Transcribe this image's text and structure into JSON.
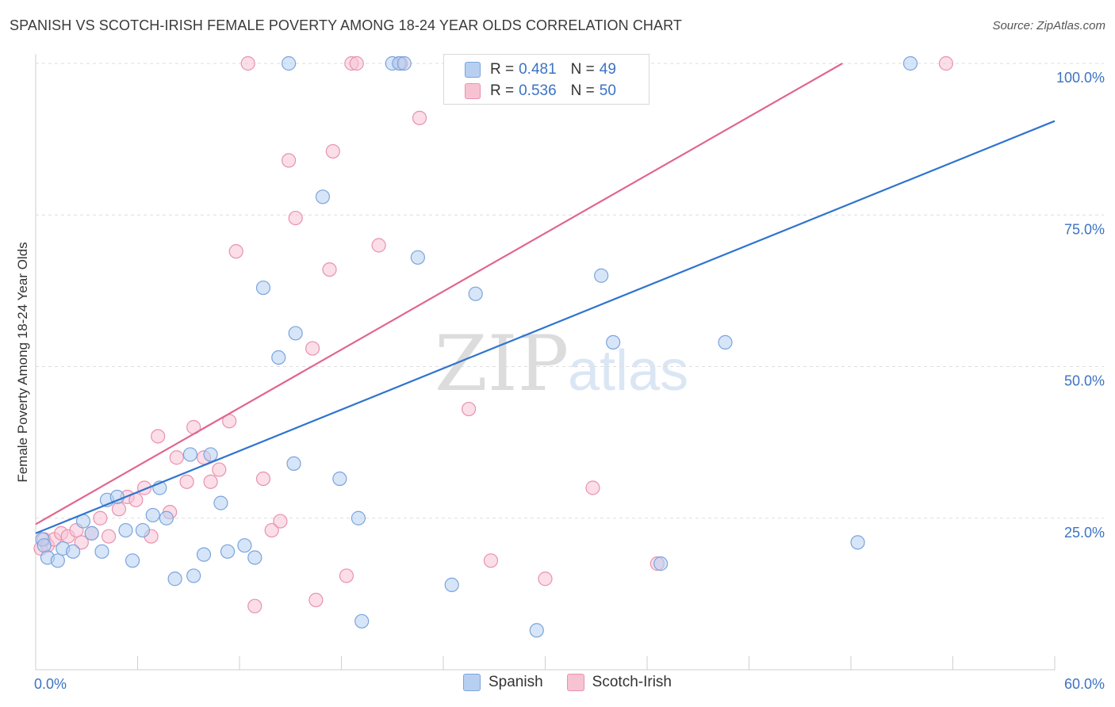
{
  "title": "SPANISH VS SCOTCH-IRISH FEMALE POVERTY AMONG 18-24 YEAR OLDS CORRELATION CHART",
  "source": "Source: ZipAtlas.com",
  "watermark": {
    "zip": "ZIP",
    "atlas": "atlas"
  },
  "colors": {
    "spanish_fill": "#b7d0f2",
    "spanish_stroke": "#7aa4dd",
    "spanish_line": "#2f74d0",
    "scotch_fill": "#f7c3d3",
    "scotch_stroke": "#e892ae",
    "scotch_line": "#e0668d",
    "axis_text": "#3b73c4"
  },
  "legend": {
    "r_label": "R =",
    "n_label": "N =",
    "spanish": {
      "r": "0.481",
      "n": "49"
    },
    "scotch": {
      "r": "0.536",
      "n": "50"
    }
  },
  "chart_data": {
    "type": "scatter",
    "xlabel": "",
    "ylabel": "Female Poverty Among 18-24 Year Olds",
    "xlim": [
      0,
      60
    ],
    "ylim": [
      0,
      100
    ],
    "x_ticks_labels": [
      "0.0%",
      "60.0%"
    ],
    "y_ticks": [
      25,
      50,
      75,
      100
    ],
    "y_ticks_labels": [
      "25.0%",
      "50.0%",
      "75.0%",
      "100.0%"
    ],
    "grid": "horizontal dashed",
    "series": [
      {
        "name": "Spanish",
        "trend": {
          "x": [
            0,
            60
          ],
          "y": [
            22.5,
            90.5
          ]
        },
        "points": [
          [
            0.4,
            21.5
          ],
          [
            0.5,
            20.5
          ],
          [
            0.7,
            18.5
          ],
          [
            1.3,
            18.0
          ],
          [
            1.6,
            20.0
          ],
          [
            2.2,
            19.5
          ],
          [
            2.8,
            24.5
          ],
          [
            3.3,
            22.5
          ],
          [
            3.9,
            19.5
          ],
          [
            4.2,
            28.0
          ],
          [
            4.8,
            28.5
          ],
          [
            5.3,
            23.0
          ],
          [
            5.7,
            18.0
          ],
          [
            6.3,
            23.0
          ],
          [
            6.9,
            25.5
          ],
          [
            7.3,
            30.0
          ],
          [
            7.7,
            25.0
          ],
          [
            8.2,
            15.0
          ],
          [
            9.1,
            35.5
          ],
          [
            9.3,
            15.5
          ],
          [
            9.9,
            19.0
          ],
          [
            10.3,
            35.5
          ],
          [
            10.9,
            27.5
          ],
          [
            11.3,
            19.5
          ],
          [
            12.3,
            20.5
          ],
          [
            12.9,
            18.5
          ],
          [
            13.4,
            63.0
          ],
          [
            14.3,
            51.5
          ],
          [
            14.9,
            100.0
          ],
          [
            15.3,
            55.5
          ],
          [
            15.2,
            34.0
          ],
          [
            16.9,
            78.0
          ],
          [
            17.9,
            31.5
          ],
          [
            19.0,
            25.0
          ],
          [
            19.2,
            8.0
          ],
          [
            21.0,
            100.0
          ],
          [
            21.4,
            100.0
          ],
          [
            21.7,
            100.0
          ],
          [
            22.5,
            68.0
          ],
          [
            24.5,
            14.0
          ],
          [
            25.9,
            62.0
          ],
          [
            28.6,
            100.0
          ],
          [
            29.5,
            6.5
          ],
          [
            33.3,
            65.0
          ],
          [
            34.0,
            54.0
          ],
          [
            36.8,
            17.5
          ],
          [
            40.6,
            54.0
          ],
          [
            48.4,
            21.0
          ],
          [
            51.5,
            100.0
          ]
        ]
      },
      {
        "name": "Scotch-Irish",
        "trend": {
          "x": [
            0,
            47.5
          ],
          "y": [
            24.0,
            100.0
          ]
        },
        "points": [
          [
            0.3,
            20.0
          ],
          [
            0.5,
            21.5
          ],
          [
            0.7,
            20.5
          ],
          [
            1.1,
            21.5
          ],
          [
            1.5,
            22.5
          ],
          [
            1.9,
            22.0
          ],
          [
            2.4,
            23.0
          ],
          [
            2.7,
            21.0
          ],
          [
            3.3,
            22.5
          ],
          [
            3.8,
            25.0
          ],
          [
            4.3,
            22.0
          ],
          [
            4.9,
            26.5
          ],
          [
            5.4,
            28.5
          ],
          [
            5.9,
            28.0
          ],
          [
            6.4,
            30.0
          ],
          [
            6.8,
            22.0
          ],
          [
            7.2,
            38.5
          ],
          [
            7.9,
            26.0
          ],
          [
            8.3,
            35.0
          ],
          [
            8.9,
            31.0
          ],
          [
            9.3,
            40.0
          ],
          [
            9.9,
            35.0
          ],
          [
            10.3,
            31.0
          ],
          [
            10.8,
            33.0
          ],
          [
            11.4,
            41.0
          ],
          [
            11.8,
            69.0
          ],
          [
            12.5,
            100.0
          ],
          [
            12.9,
            10.5
          ],
          [
            13.4,
            31.5
          ],
          [
            13.9,
            23.0
          ],
          [
            14.4,
            24.5
          ],
          [
            14.9,
            84.0
          ],
          [
            15.3,
            74.5
          ],
          [
            16.3,
            53.0
          ],
          [
            16.5,
            11.5
          ],
          [
            17.3,
            66.0
          ],
          [
            17.5,
            85.5
          ],
          [
            18.3,
            15.5
          ],
          [
            18.6,
            100.0
          ],
          [
            18.9,
            100.0
          ],
          [
            20.2,
            70.0
          ],
          [
            21.5,
            100.0
          ],
          [
            22.6,
            91.0
          ],
          [
            25.5,
            43.0
          ],
          [
            26.8,
            18.0
          ],
          [
            28.1,
            100.0
          ],
          [
            30.0,
            15.0
          ],
          [
            32.8,
            30.0
          ],
          [
            36.6,
            17.5
          ],
          [
            53.6,
            100.0
          ]
        ]
      }
    ]
  },
  "bottom_legend": [
    "Spanish",
    "Scotch-Irish"
  ]
}
